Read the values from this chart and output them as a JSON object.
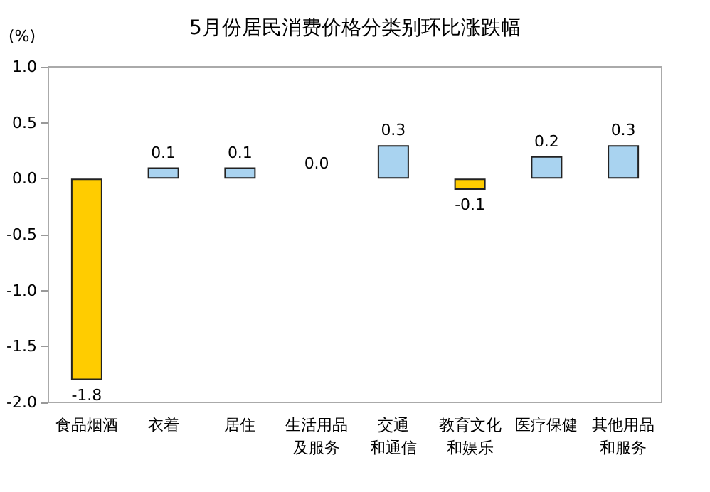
{
  "chart_data": {
    "type": "bar",
    "title": "5月份居民消费价格分类别环比涨跌幅",
    "ylabel": "(%)",
    "categories": [
      "食品烟酒",
      "衣着",
      "居住",
      "生活用品及服务",
      "交通和通信",
      "教育文化和娱乐",
      "医疗保健",
      "其他用品和服务"
    ],
    "values": [
      -1.8,
      0.1,
      0.1,
      0.0,
      0.3,
      -0.1,
      0.2,
      0.3
    ],
    "colors": [
      "#ffcc00",
      "#a9d3f0",
      "#a9d3f0",
      "#a9d3f0",
      "#a9d3f0",
      "#ffcc00",
      "#a9d3f0",
      "#a9d3f0"
    ],
    "value_labels": [
      "-1.8",
      "0.1",
      "0.1",
      "0.0",
      "0.3",
      "-0.1",
      "0.2",
      "0.3"
    ],
    "ylim": [
      -2,
      1
    ],
    "yticks": [
      {
        "value": -2,
        "label": "-2.0"
      },
      {
        "value": -1.5,
        "label": "-1.5"
      },
      {
        "value": -1,
        "label": "-1.0"
      },
      {
        "value": -0.5,
        "label": "-0.5"
      },
      {
        "value": 0,
        "label": "0.0"
      },
      {
        "value": 0.5,
        "label": "0.5"
      },
      {
        "value": 1,
        "label": "1.0"
      }
    ],
    "grid": false
  }
}
